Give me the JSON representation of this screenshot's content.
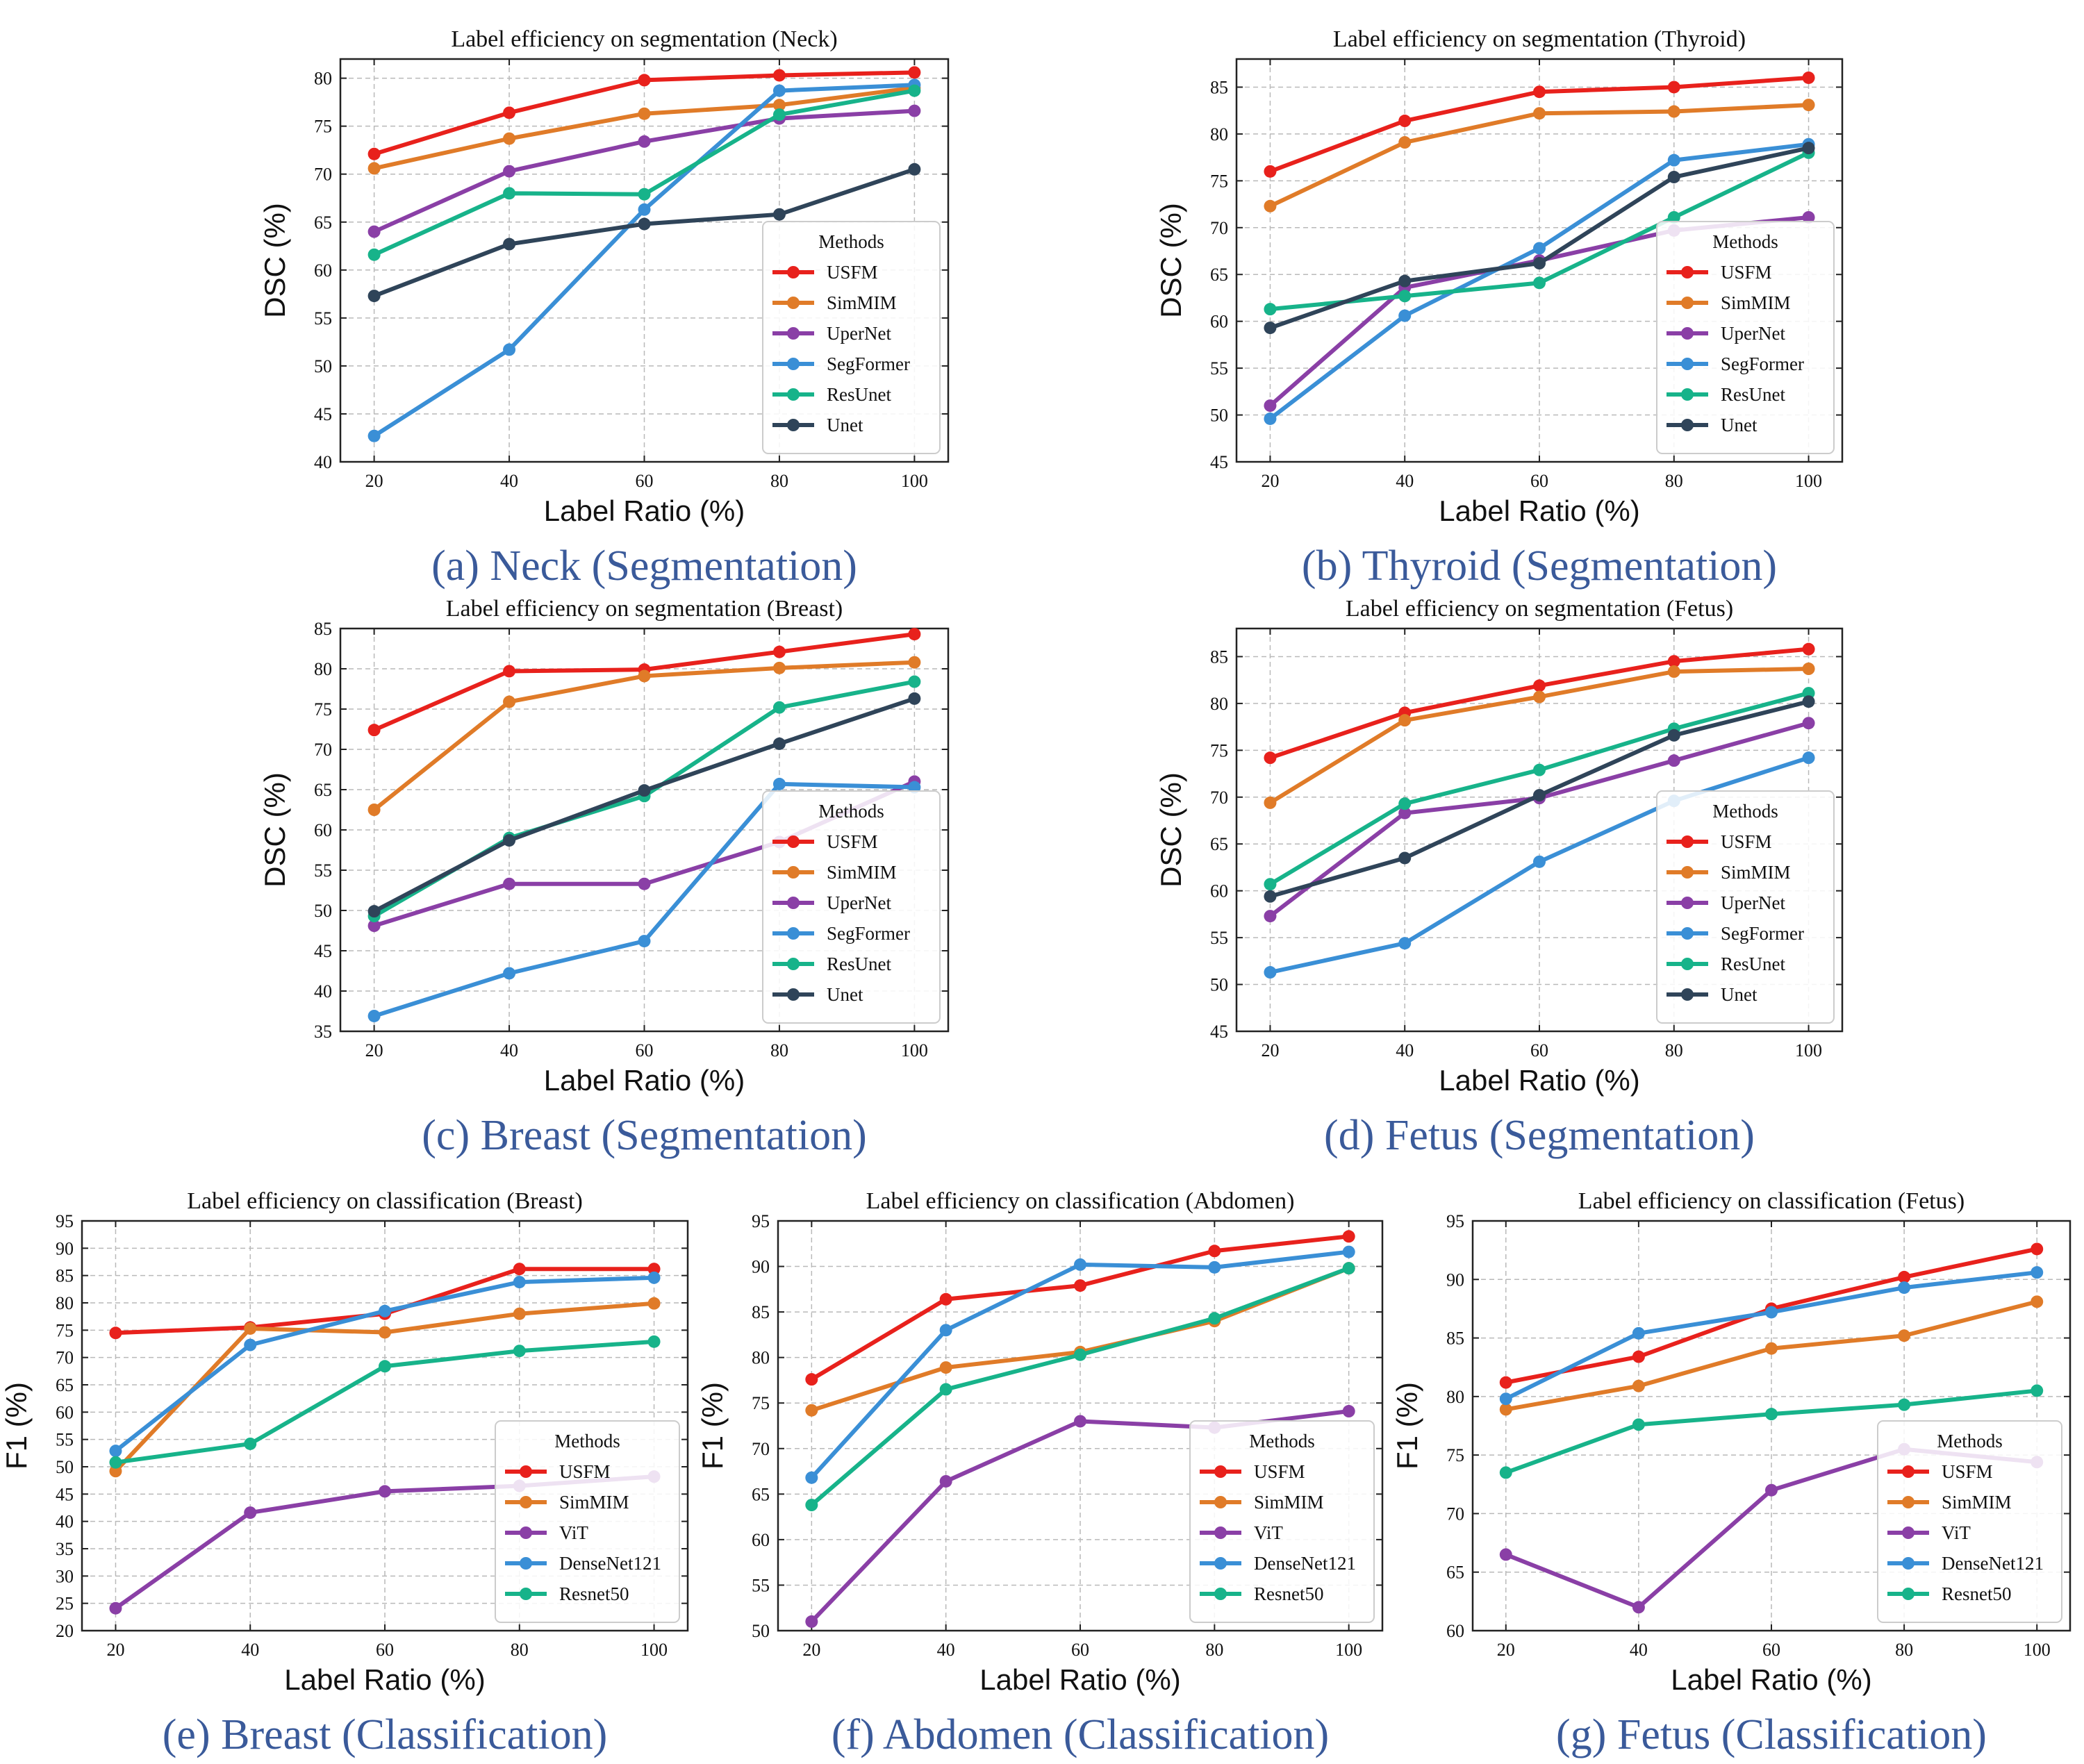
{
  "chart_data": [
    {
      "type": "line",
      "title": "Label efficiency on segmentation (Neck)",
      "caption": "(a) Neck (Segmentation)",
      "xlabel": "Label Ratio (%)",
      "ylabel": "DSC (%)",
      "x": [
        20,
        40,
        60,
        80,
        100
      ],
      "xlim": [
        15,
        105
      ],
      "ylim": [
        40,
        82
      ],
      "yticks": [
        40,
        45,
        50,
        55,
        60,
        65,
        70,
        75,
        80
      ],
      "legend_title": "Methods",
      "legend_position": "lower-right",
      "series": [
        {
          "name": "USFM",
          "color": "#e8211c",
          "values": [
            72.1,
            76.4,
            79.8,
            80.3,
            80.6
          ]
        },
        {
          "name": "SimMIM",
          "color": "#e07b28",
          "values": [
            70.6,
            73.7,
            76.3,
            77.2,
            79.0
          ]
        },
        {
          "name": "UperNet",
          "color": "#8a3fa6",
          "values": [
            64.0,
            70.3,
            73.4,
            75.8,
            76.6
          ]
        },
        {
          "name": "SegFormer",
          "color": "#3a8fd6",
          "values": [
            42.7,
            51.7,
            66.3,
            78.7,
            79.3
          ]
        },
        {
          "name": "ResUnet",
          "color": "#17b38a",
          "values": [
            61.6,
            68.0,
            67.9,
            76.2,
            78.7
          ]
        },
        {
          "name": "Unet",
          "color": "#2f4459",
          "values": [
            57.3,
            62.7,
            64.8,
            65.8,
            70.5
          ]
        }
      ]
    },
    {
      "type": "line",
      "title": "Label efficiency on segmentation (Thyroid)",
      "caption": "(b) Thyroid (Segmentation)",
      "xlabel": "Label Ratio (%)",
      "ylabel": "DSC (%)",
      "x": [
        20,
        40,
        60,
        80,
        100
      ],
      "xlim": [
        15,
        105
      ],
      "ylim": [
        45,
        88
      ],
      "yticks": [
        45,
        50,
        55,
        60,
        65,
        70,
        75,
        80,
        85
      ],
      "legend_title": "Methods",
      "legend_position": "lower-right",
      "series": [
        {
          "name": "USFM",
          "color": "#e8211c",
          "values": [
            76.0,
            81.4,
            84.5,
            85.0,
            86.0
          ]
        },
        {
          "name": "SimMIM",
          "color": "#e07b28",
          "values": [
            72.3,
            79.1,
            82.2,
            82.4,
            83.1
          ]
        },
        {
          "name": "UperNet",
          "color": "#8a3fa6",
          "values": [
            51.0,
            63.6,
            66.5,
            69.7,
            71.1
          ]
        },
        {
          "name": "SegFormer",
          "color": "#3a8fd6",
          "values": [
            49.6,
            60.6,
            67.8,
            77.2,
            78.9
          ]
        },
        {
          "name": "ResUnet",
          "color": "#17b38a",
          "values": [
            61.3,
            62.7,
            64.1,
            71.1,
            78.0
          ]
        },
        {
          "name": "Unet",
          "color": "#2f4459",
          "values": [
            59.3,
            64.3,
            66.2,
            75.4,
            78.5
          ]
        }
      ]
    },
    {
      "type": "line",
      "title": "Label efficiency on segmentation (Breast)",
      "caption": "(c) Breast (Segmentation)",
      "xlabel": "Label Ratio (%)",
      "ylabel": "DSC (%)",
      "x": [
        20,
        40,
        60,
        80,
        100
      ],
      "xlim": [
        15,
        105
      ],
      "ylim": [
        35,
        85
      ],
      "yticks": [
        35,
        40,
        45,
        50,
        55,
        60,
        65,
        70,
        75,
        80,
        85
      ],
      "legend_title": "Methods",
      "legend_position": "lower-right",
      "series": [
        {
          "name": "USFM",
          "color": "#e8211c",
          "values": [
            72.4,
            79.7,
            79.9,
            82.1,
            84.3
          ]
        },
        {
          "name": "SimMIM",
          "color": "#e07b28",
          "values": [
            62.5,
            75.9,
            79.1,
            80.1,
            80.8
          ]
        },
        {
          "name": "UperNet",
          "color": "#8a3fa6",
          "values": [
            48.1,
            53.3,
            53.3,
            58.5,
            66.0
          ]
        },
        {
          "name": "SegFormer",
          "color": "#3a8fd6",
          "values": [
            36.9,
            42.2,
            46.2,
            65.7,
            65.3
          ]
        },
        {
          "name": "ResUnet",
          "color": "#17b38a",
          "values": [
            49.3,
            59.0,
            64.2,
            75.2,
            78.4
          ]
        },
        {
          "name": "Unet",
          "color": "#2f4459",
          "values": [
            49.9,
            58.7,
            64.9,
            70.7,
            76.3
          ]
        }
      ]
    },
    {
      "type": "line",
      "title": "Label efficiency on segmentation (Fetus)",
      "caption": "(d) Fetus (Segmentation)",
      "xlabel": "Label Ratio (%)",
      "ylabel": "DSC (%)",
      "x": [
        20,
        40,
        60,
        80,
        100
      ],
      "xlim": [
        15,
        105
      ],
      "ylim": [
        45,
        88
      ],
      "yticks": [
        45,
        50,
        55,
        60,
        65,
        70,
        75,
        80,
        85
      ],
      "legend_title": "Methods",
      "legend_position": "lower-right",
      "series": [
        {
          "name": "USFM",
          "color": "#e8211c",
          "values": [
            74.2,
            79.0,
            81.9,
            84.5,
            85.8
          ]
        },
        {
          "name": "SimMIM",
          "color": "#e07b28",
          "values": [
            69.4,
            78.2,
            80.7,
            83.4,
            83.7
          ]
        },
        {
          "name": "UperNet",
          "color": "#8a3fa6",
          "values": [
            57.3,
            68.3,
            69.9,
            73.9,
            77.9
          ]
        },
        {
          "name": "SegFormer",
          "color": "#3a8fd6",
          "values": [
            51.3,
            54.4,
            63.1,
            69.6,
            74.2
          ]
        },
        {
          "name": "ResUnet",
          "color": "#17b38a",
          "values": [
            60.7,
            69.3,
            72.9,
            77.3,
            81.1
          ]
        },
        {
          "name": "Unet",
          "color": "#2f4459",
          "values": [
            59.4,
            63.5,
            70.2,
            76.6,
            80.2
          ]
        }
      ]
    },
    {
      "type": "line",
      "title": "Label efficiency on classification (Breast)",
      "caption": "(e) Breast (Classification)",
      "xlabel": "Label Ratio (%)",
      "ylabel": "F1 (%)",
      "x": [
        20,
        40,
        60,
        80,
        100
      ],
      "xlim": [
        15,
        105
      ],
      "ylim": [
        20,
        95
      ],
      "yticks": [
        20,
        25,
        30,
        35,
        40,
        45,
        50,
        55,
        60,
        65,
        70,
        75,
        80,
        85,
        90,
        95
      ],
      "legend_title": "Methods",
      "legend_position": "lower-right",
      "series": [
        {
          "name": "USFM",
          "color": "#e8211c",
          "values": [
            74.5,
            75.5,
            78.0,
            86.2,
            86.2
          ]
        },
        {
          "name": "SimMIM",
          "color": "#e07b28",
          "values": [
            49.2,
            75.3,
            74.6,
            78.0,
            79.9
          ]
        },
        {
          "name": "ViT",
          "color": "#8a3fa6",
          "values": [
            24.1,
            41.6,
            45.5,
            46.5,
            48.2
          ]
        },
        {
          "name": "DenseNet121",
          "color": "#3a8fd6",
          "values": [
            52.9,
            72.3,
            78.5,
            83.8,
            84.6
          ]
        },
        {
          "name": "Resnet50",
          "color": "#17b38a",
          "values": [
            50.8,
            54.2,
            68.4,
            71.2,
            72.9
          ]
        }
      ]
    },
    {
      "type": "line",
      "title": "Label efficiency on classification (Abdomen)",
      "caption": "(f) Abdomen (Classification)",
      "xlabel": "Label Ratio (%)",
      "ylabel": "F1 (%)",
      "x": [
        20,
        40,
        60,
        80,
        100
      ],
      "xlim": [
        15,
        105
      ],
      "ylim": [
        50,
        95
      ],
      "yticks": [
        50,
        55,
        60,
        65,
        70,
        75,
        80,
        85,
        90,
        95
      ],
      "legend_title": "Methods",
      "legend_position": "lower-right",
      "series": [
        {
          "name": "USFM",
          "color": "#e8211c",
          "values": [
            77.6,
            86.4,
            87.9,
            91.7,
            93.3
          ]
        },
        {
          "name": "SimMIM",
          "color": "#e07b28",
          "values": [
            74.2,
            78.9,
            80.6,
            84.0,
            89.8
          ]
        },
        {
          "name": "ViT",
          "color": "#8a3fa6",
          "values": [
            51.0,
            66.4,
            73.0,
            72.3,
            74.1
          ]
        },
        {
          "name": "DenseNet121",
          "color": "#3a8fd6",
          "values": [
            66.8,
            83.0,
            90.2,
            89.9,
            91.6
          ]
        },
        {
          "name": "Resnet50",
          "color": "#17b38a",
          "values": [
            63.8,
            76.5,
            80.3,
            84.3,
            89.8
          ]
        }
      ]
    },
    {
      "type": "line",
      "title": "Label efficiency on classification (Fetus)",
      "caption": "(g) Fetus (Classification)",
      "xlabel": "Label Ratio (%)",
      "ylabel": "F1 (%)",
      "x": [
        20,
        40,
        60,
        80,
        100
      ],
      "xlim": [
        15,
        105
      ],
      "ylim": [
        60,
        95
      ],
      "yticks": [
        60,
        65,
        70,
        75,
        80,
        85,
        90,
        95
      ],
      "legend_title": "Methods",
      "legend_position": "lower-right",
      "series": [
        {
          "name": "USFM",
          "color": "#e8211c",
          "values": [
            81.2,
            83.4,
            87.5,
            90.2,
            92.6
          ]
        },
        {
          "name": "SimMIM",
          "color": "#e07b28",
          "values": [
            78.9,
            80.9,
            84.1,
            85.2,
            88.1
          ]
        },
        {
          "name": "ViT",
          "color": "#8a3fa6",
          "values": [
            66.5,
            62.0,
            72.0,
            75.5,
            74.4
          ]
        },
        {
          "name": "DenseNet121",
          "color": "#3a8fd6",
          "values": [
            79.8,
            85.4,
            87.2,
            89.3,
            90.6
          ]
        },
        {
          "name": "Resnet50",
          "color": "#17b38a",
          "values": [
            73.5,
            77.6,
            78.5,
            79.3,
            80.5
          ]
        }
      ]
    }
  ]
}
